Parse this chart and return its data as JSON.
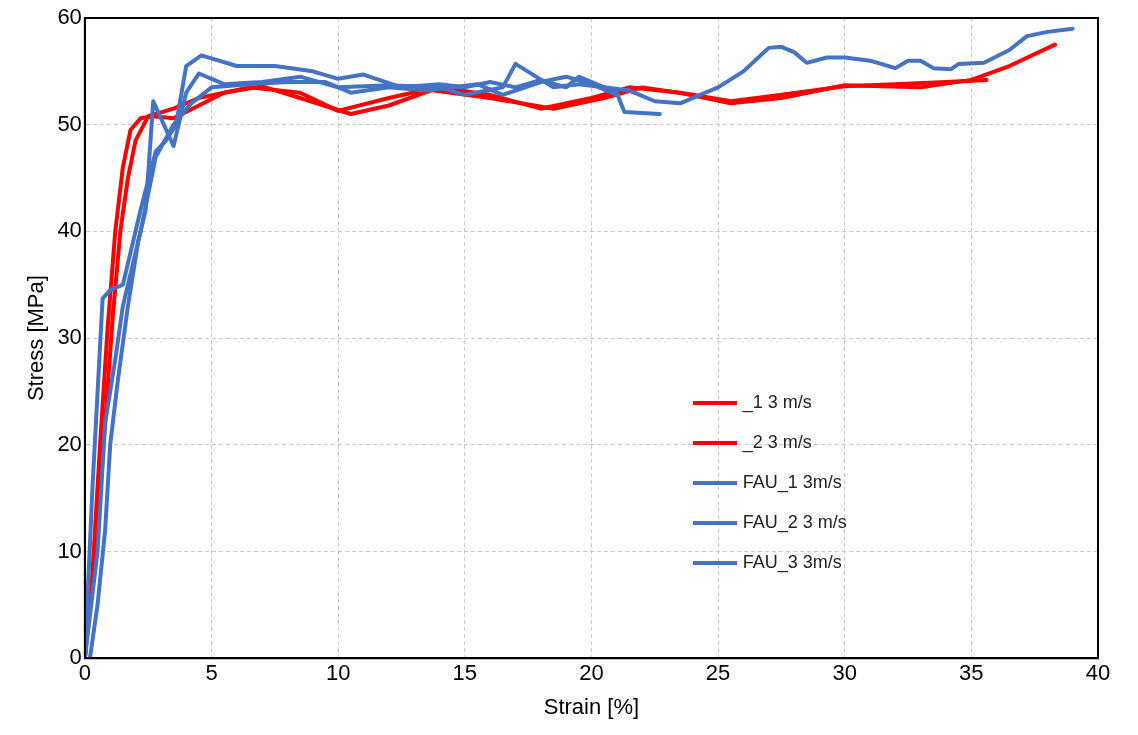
{
  "chart_data": {
    "type": "line",
    "xlabel": "Strain [%]",
    "ylabel": "Stress [MPa]",
    "xlim": [
      0,
      40
    ],
    "ylim": [
      0,
      60
    ],
    "xticks": [
      0,
      5,
      10,
      15,
      20,
      25,
      30,
      35,
      40
    ],
    "yticks": [
      0,
      10,
      20,
      30,
      40,
      50,
      60
    ],
    "grid": true,
    "legend": "right",
    "marker": "none",
    "line_style": "solid",
    "series": [
      {
        "name": "_1 3 m/s",
        "color": "#ff0000",
        "x": [
          0,
          0.3,
          0.6,
          0.9,
          1.2,
          1.5,
          1.8,
          2.2,
          2.7,
          3.5,
          4.5,
          5.5,
          7,
          8.5,
          10.5,
          12,
          14,
          16,
          18,
          20,
          21.5,
          23.5,
          25.5,
          27.5,
          30,
          33,
          35,
          36.5,
          38.3
        ],
        "values": [
          0,
          8,
          20,
          31,
          40,
          46,
          49.5,
          50.6,
          50.8,
          50.6,
          51.8,
          53,
          53.6,
          52.5,
          51,
          51.8,
          53.5,
          52.8,
          51.5,
          52.5,
          53.5,
          53,
          52,
          52.5,
          53.7,
          53.5,
          54.2,
          55.5,
          57.5
        ]
      },
      {
        "name": "_2 3 m/s",
        "color": "#ff0000",
        "x": [
          0,
          0.4,
          0.8,
          1.1,
          1.4,
          1.7,
          2,
          2.5,
          3.5,
          4.5,
          6.5,
          8.5,
          10,
          12,
          13.5,
          16,
          18.5,
          20.5,
          22,
          24,
          25.5,
          27.5,
          30,
          32,
          34,
          35.6
        ],
        "values": [
          0,
          10,
          22,
          32,
          40,
          45,
          48.5,
          50.8,
          51.5,
          52.5,
          53.5,
          53,
          51.3,
          52.5,
          53.3,
          52.5,
          51.5,
          52.5,
          53.5,
          52.8,
          52.2,
          52.8,
          53.6,
          53.8,
          54,
          54.2
        ]
      },
      {
        "name": "FAU_1 3m/s",
        "color": "#4472c4",
        "x": [
          0,
          0.3,
          0.7,
          1,
          1.5,
          1.8,
          2.2,
          2.8,
          3.2,
          3.6,
          4,
          4.6,
          6,
          7.5,
          9,
          10,
          11,
          12.5,
          14,
          15,
          16,
          17,
          18,
          19,
          19.5,
          20.5,
          21,
          21.3,
          22.7
        ],
        "values": [
          0,
          16,
          33.7,
          34.5,
          35,
          38,
          42,
          47.5,
          48.5,
          50,
          55.5,
          56.5,
          55.5,
          55.5,
          55,
          54.3,
          54.7,
          53.5,
          53.8,
          53.5,
          54,
          53.5,
          54.2,
          53.5,
          54.5,
          53.5,
          53,
          51.2,
          51
        ]
      },
      {
        "name": "FAU_2 3 m/s",
        "color": "#4472c4",
        "x": [
          0.2,
          0.5,
          0.8,
          1,
          1.3,
          1.7,
          2.1,
          2.4,
          2.7,
          3.5,
          4,
          4.5,
          5.5,
          7,
          8.5,
          10,
          12,
          14,
          15,
          16.5,
          17,
          18.5,
          19.5,
          20.5,
          21.5,
          22.5,
          23.5,
          25,
          26,
          27,
          27.5,
          28,
          28.5,
          29.3,
          30,
          31,
          32,
          32.5,
          33,
          33.5,
          34.2,
          34.5,
          35.5,
          36.5,
          37.2,
          38,
          39
        ],
        "values": [
          0,
          5,
          12,
          20,
          26,
          33,
          39,
          42,
          52.2,
          48,
          53,
          54.8,
          53.8,
          54,
          54.5,
          53.5,
          53.7,
          53.5,
          52.8,
          53.5,
          55.7,
          53.5,
          53.8,
          53.5,
          53.2,
          52.2,
          52,
          53.5,
          55,
          57.2,
          57.3,
          56.8,
          55.8,
          56.3,
          56.3,
          56,
          55.3,
          56,
          56,
          55.3,
          55.2,
          55.7,
          55.8,
          57,
          58.3,
          58.7,
          59
        ]
      },
      {
        "name": "FAU_3 3m/s",
        "color": "#4472c4",
        "x": [
          0,
          0.5,
          0.8,
          1.2,
          1.5,
          1.9,
          2.2,
          2.8,
          3.5,
          4.2,
          5,
          6.5,
          8,
          9.5,
          10.5,
          12,
          13.5,
          15.5,
          16.5,
          18,
          19,
          20,
          21
        ],
        "values": [
          0,
          10,
          22,
          28,
          33,
          37,
          40,
          47,
          50,
          52,
          53.5,
          53.8,
          54,
          54,
          53,
          53.5,
          53.2,
          53.8,
          52.8,
          54,
          54.5,
          53.8,
          52.8
        ]
      }
    ]
  }
}
